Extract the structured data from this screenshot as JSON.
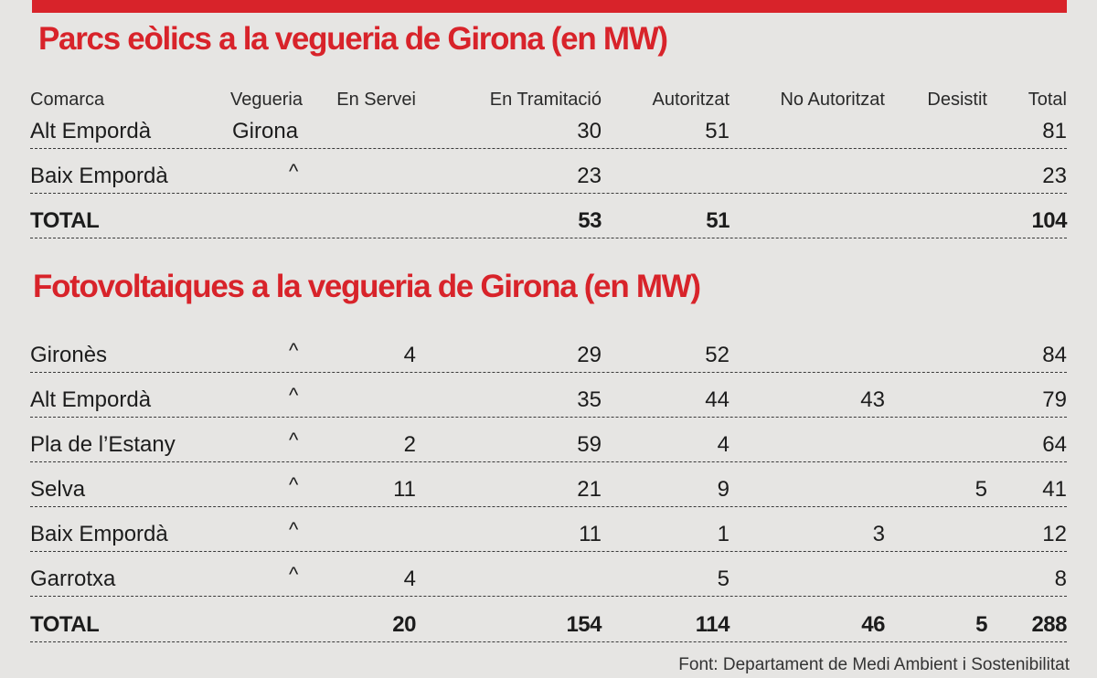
{
  "colors": {
    "accent": "#d8232a",
    "background": "#e6e5e3",
    "text": "#1c1c1c"
  },
  "wind": {
    "title": "Parcs eòlics a la vegueria de Girona (en MW)",
    "headers": {
      "comarca": "Comarca",
      "vegueria": "Vegueria",
      "en_servei": "En Servei",
      "en_tramitacio": "En Tramitació",
      "autoritzat": "Autoritzat",
      "no_autoritzat": "No Autoritzat",
      "desistit": "Desistit",
      "total": "Total"
    },
    "rows": [
      {
        "comarca": "Alt Empordà",
        "vegueria": "Girona",
        "en_servei": "",
        "en_tramitacio": "30",
        "autoritzat": "51",
        "no_autoritzat": "",
        "desistit": "",
        "total": "81"
      },
      {
        "comarca": "Baix Empordà",
        "vegueria": "^",
        "en_servei": "",
        "en_tramitacio": "23",
        "autoritzat": "",
        "no_autoritzat": "",
        "desistit": "",
        "total": "23"
      }
    ],
    "total": {
      "label": "TOTAL",
      "en_servei": "",
      "en_tramitacio": "53",
      "autoritzat": "51",
      "no_autoritzat": "",
      "desistit": "",
      "total": "104"
    }
  },
  "solar": {
    "title": "Fotovoltaiques a la vegueria de Girona (en MW)",
    "rows": [
      {
        "comarca": "Gironès",
        "vegueria": "^",
        "en_servei": "4",
        "en_tramitacio": "29",
        "autoritzat": "52",
        "no_autoritzat": "",
        "desistit": "",
        "total": "84"
      },
      {
        "comarca": "Alt Empordà",
        "vegueria": "^",
        "en_servei": "",
        "en_tramitacio": "35",
        "autoritzat": "44",
        "no_autoritzat": "43",
        "desistit": "",
        "total": "79"
      },
      {
        "comarca": "Pla de l’Estany",
        "vegueria": "^",
        "en_servei": "2",
        "en_tramitacio": "59",
        "autoritzat": "4",
        "no_autoritzat": "",
        "desistit": "",
        "total": "64"
      },
      {
        "comarca": "Selva",
        "vegueria": "^",
        "en_servei": "11",
        "en_tramitacio": "21",
        "autoritzat": "9",
        "no_autoritzat": "",
        "desistit": "5",
        "total": "41"
      },
      {
        "comarca": "Baix Empordà",
        "vegueria": "^",
        "en_servei": "",
        "en_tramitacio": "11",
        "autoritzat": "1",
        "no_autoritzat": "3",
        "desistit": "",
        "total": "12"
      },
      {
        "comarca": "Garrotxa",
        "vegueria": "^",
        "en_servei": "4",
        "en_tramitacio": "",
        "autoritzat": "5",
        "no_autoritzat": "",
        "desistit": "",
        "total": "8"
      }
    ],
    "total": {
      "label": "TOTAL",
      "en_servei": "20",
      "en_tramitacio": "154",
      "autoritzat": "114",
      "no_autoritzat": "46",
      "desistit": "5",
      "total": "288"
    }
  },
  "source": "Font: Departament de Medi Ambient i Sostenibilitat"
}
